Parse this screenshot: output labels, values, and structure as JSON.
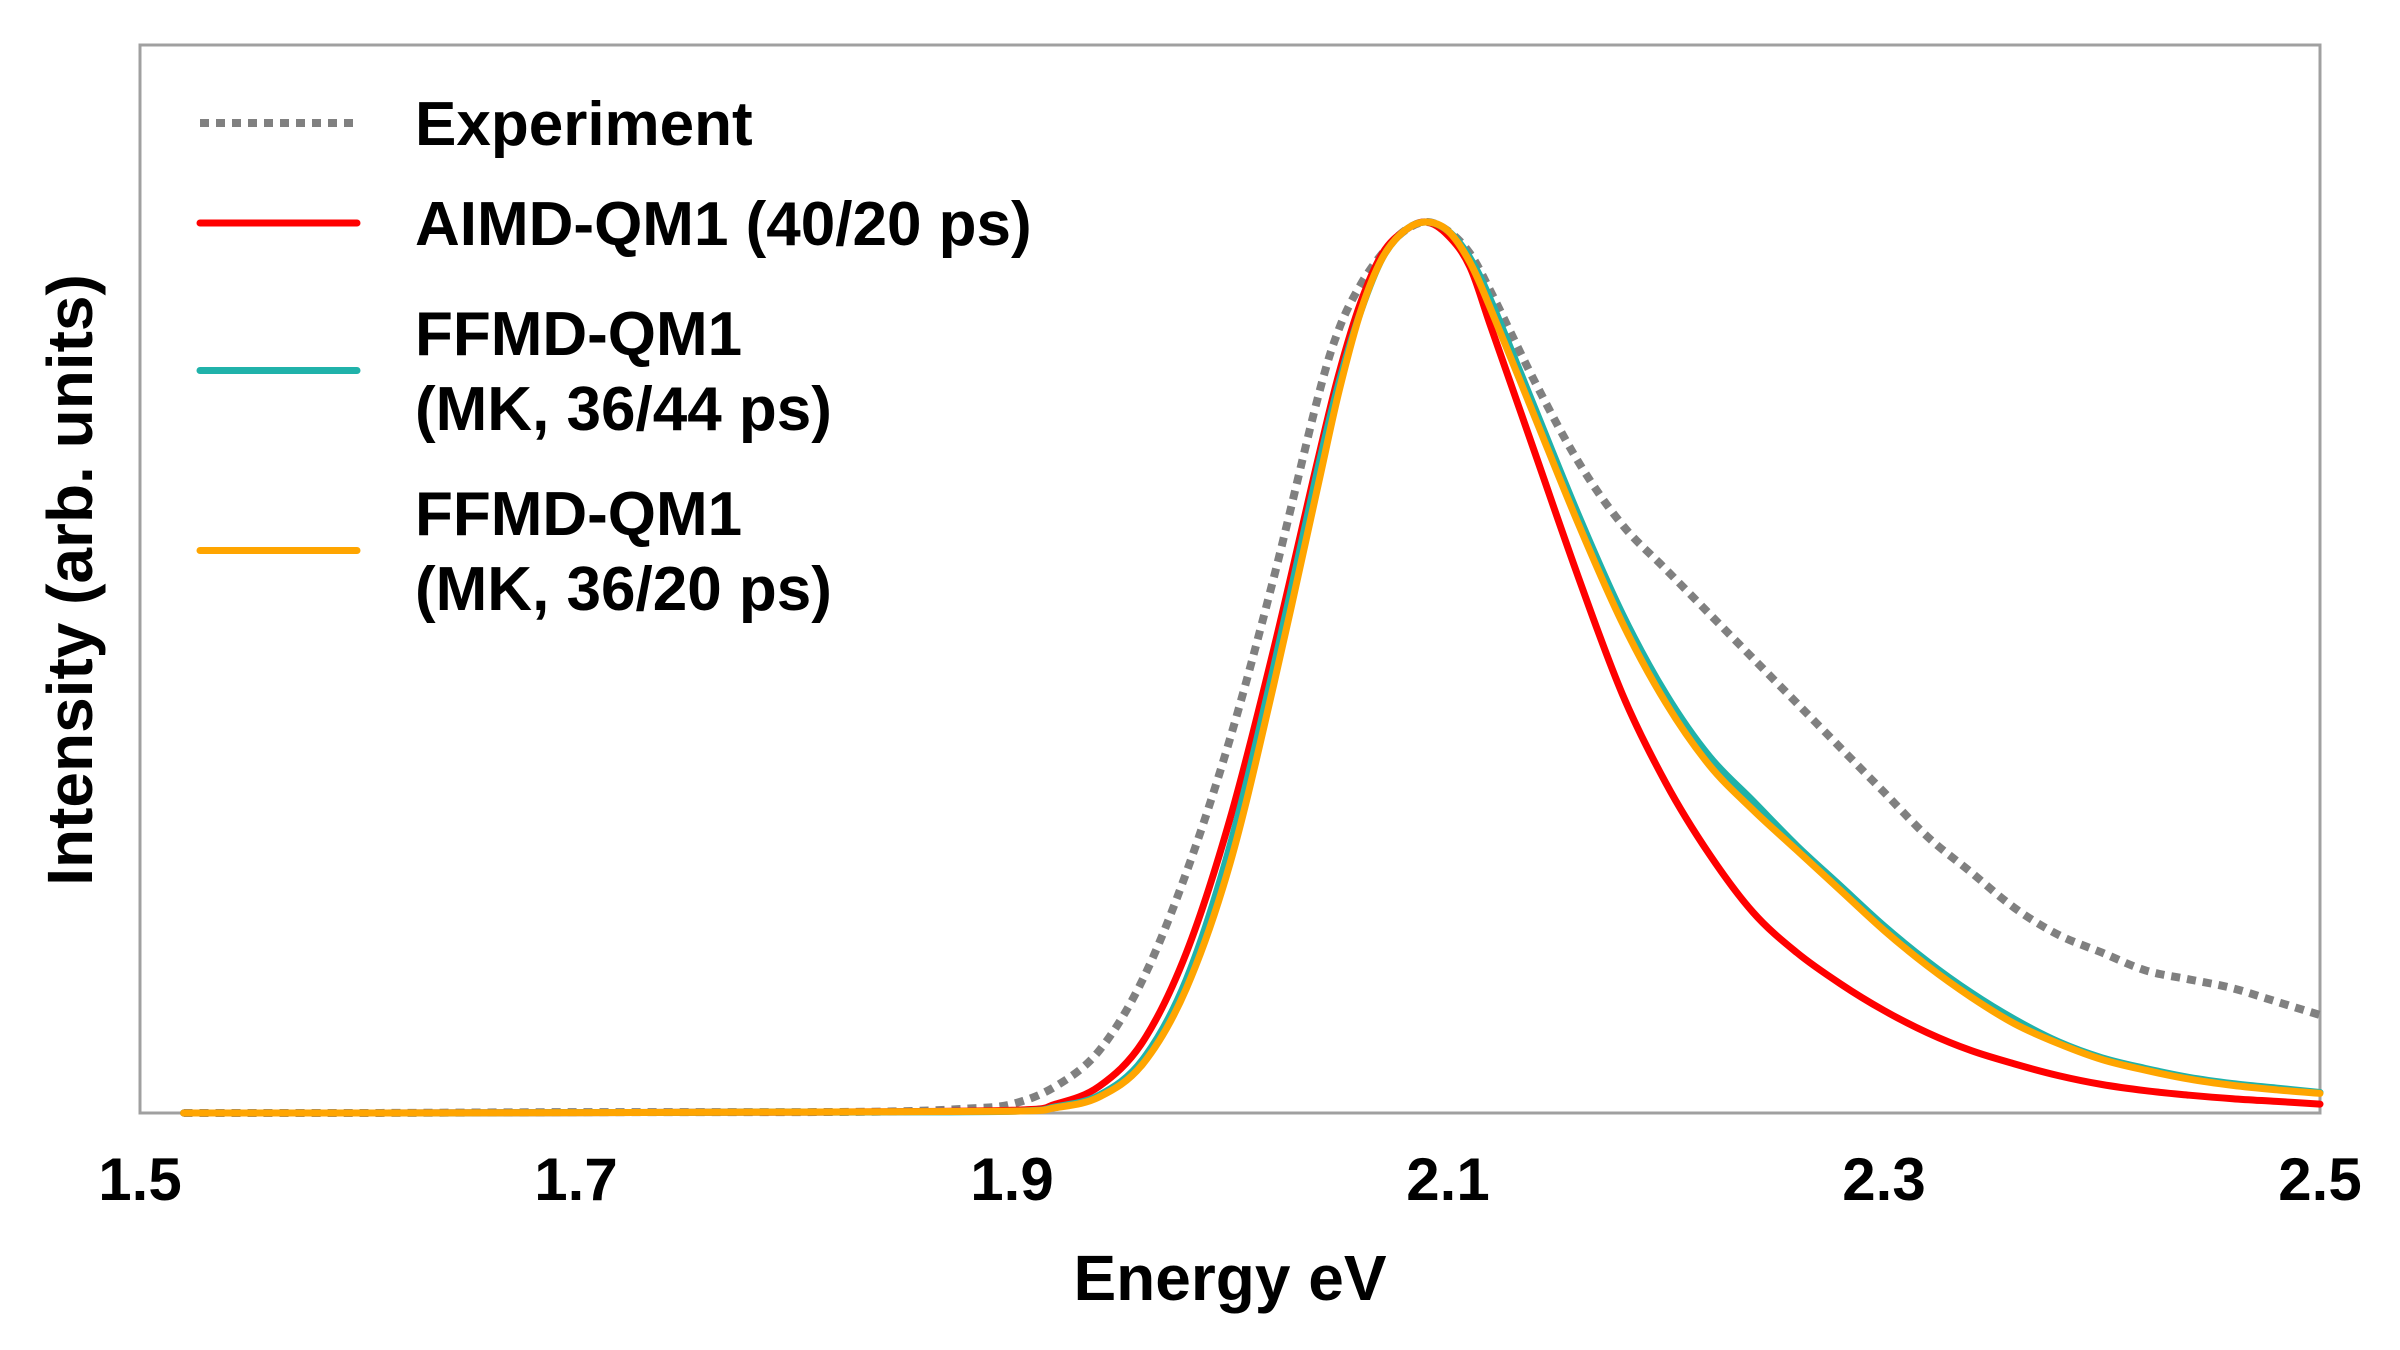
{
  "chart_data": {
    "type": "line",
    "title": "",
    "xlabel": "Energy eV",
    "ylabel": "Intensity (arb. units)",
    "xlim": [
      1.5,
      2.5
    ],
    "ylim": [
      0,
      1.0
    ],
    "xticks": [
      "1.5",
      "1.7",
      "1.9",
      "2.1",
      "2.3",
      "2.5"
    ],
    "grid": false,
    "legend_position": "top-left",
    "series": [
      {
        "name": "Experiment",
        "legend_lines": [
          "Experiment"
        ],
        "color": "#808080",
        "style": "dotted",
        "points": [
          [
            1.52,
            0.0
          ],
          [
            1.6,
            0.0
          ],
          [
            1.7,
            0.001
          ],
          [
            1.8,
            0.001
          ],
          [
            1.85,
            0.002
          ],
          [
            1.88,
            0.005
          ],
          [
            1.9,
            0.01
          ],
          [
            1.92,
            0.03
          ],
          [
            1.94,
            0.07
          ],
          [
            1.96,
            0.15
          ],
          [
            1.98,
            0.27
          ],
          [
            2.0,
            0.42
          ],
          [
            2.02,
            0.6
          ],
          [
            2.04,
            0.8
          ],
          [
            2.05,
            0.88
          ],
          [
            2.06,
            0.93
          ],
          [
            2.07,
            0.965
          ],
          [
            2.08,
            0.99
          ],
          [
            2.09,
            1.0
          ],
          [
            2.1,
            0.99
          ],
          [
            2.11,
            0.965
          ],
          [
            2.12,
            0.92
          ],
          [
            2.14,
            0.82
          ],
          [
            2.16,
            0.73
          ],
          [
            2.18,
            0.66
          ],
          [
            2.2,
            0.61
          ],
          [
            2.22,
            0.56
          ],
          [
            2.24,
            0.51
          ],
          [
            2.26,
            0.46
          ],
          [
            2.28,
            0.41
          ],
          [
            2.3,
            0.36
          ],
          [
            2.32,
            0.31
          ],
          [
            2.34,
            0.27
          ],
          [
            2.36,
            0.23
          ],
          [
            2.38,
            0.2
          ],
          [
            2.4,
            0.18
          ],
          [
            2.42,
            0.16
          ],
          [
            2.44,
            0.15
          ],
          [
            2.46,
            0.14
          ],
          [
            2.48,
            0.125
          ],
          [
            2.5,
            0.11
          ]
        ]
      },
      {
        "name": "AIMD-QM1 (40/20 ps)",
        "legend_lines": [
          "AIMD-QM1 (40/20 ps)"
        ],
        "color": "#ff0000",
        "style": "solid",
        "points": [
          [
            1.52,
            0.0
          ],
          [
            1.6,
            0.0
          ],
          [
            1.8,
            0.001
          ],
          [
            1.9,
            0.003
          ],
          [
            1.92,
            0.01
          ],
          [
            1.94,
            0.03
          ],
          [
            1.96,
            0.08
          ],
          [
            1.98,
            0.18
          ],
          [
            2.0,
            0.33
          ],
          [
            2.02,
            0.52
          ],
          [
            2.04,
            0.73
          ],
          [
            2.05,
            0.83
          ],
          [
            2.06,
            0.91
          ],
          [
            2.07,
            0.965
          ],
          [
            2.08,
            0.99
          ],
          [
            2.09,
            1.0
          ],
          [
            2.1,
            0.985
          ],
          [
            2.11,
            0.95
          ],
          [
            2.12,
            0.88
          ],
          [
            2.14,
            0.74
          ],
          [
            2.16,
            0.6
          ],
          [
            2.18,
            0.47
          ],
          [
            2.2,
            0.37
          ],
          [
            2.22,
            0.29
          ],
          [
            2.24,
            0.225
          ],
          [
            2.26,
            0.18
          ],
          [
            2.28,
            0.145
          ],
          [
            2.3,
            0.115
          ],
          [
            2.32,
            0.09
          ],
          [
            2.34,
            0.07
          ],
          [
            2.36,
            0.055
          ],
          [
            2.38,
            0.042
          ],
          [
            2.4,
            0.032
          ],
          [
            2.42,
            0.025
          ],
          [
            2.44,
            0.02
          ],
          [
            2.46,
            0.016
          ],
          [
            2.48,
            0.013
          ],
          [
            2.5,
            0.01
          ]
        ]
      },
      {
        "name": "FFMD-QM1 (MK, 36/44 ps)",
        "legend_lines": [
          "FFMD-QM1",
          "(MK, 36/44 ps)"
        ],
        "color": "#20b2aa",
        "style": "solid",
        "points": [
          [
            1.52,
            0.0
          ],
          [
            1.6,
            0.0
          ],
          [
            1.8,
            0.001
          ],
          [
            1.9,
            0.002
          ],
          [
            1.92,
            0.007
          ],
          [
            1.94,
            0.02
          ],
          [
            1.96,
            0.06
          ],
          [
            1.98,
            0.15
          ],
          [
            2.0,
            0.3
          ],
          [
            2.02,
            0.5
          ],
          [
            2.04,
            0.72
          ],
          [
            2.05,
            0.82
          ],
          [
            2.06,
            0.9
          ],
          [
            2.07,
            0.96
          ],
          [
            2.08,
            0.99
          ],
          [
            2.09,
            1.0
          ],
          [
            2.1,
            0.99
          ],
          [
            2.11,
            0.96
          ],
          [
            2.12,
            0.91
          ],
          [
            2.14,
            0.79
          ],
          [
            2.16,
            0.67
          ],
          [
            2.18,
            0.56
          ],
          [
            2.2,
            0.47
          ],
          [
            2.22,
            0.4
          ],
          [
            2.24,
            0.35
          ],
          [
            2.26,
            0.3
          ],
          [
            2.28,
            0.255
          ],
          [
            2.3,
            0.21
          ],
          [
            2.32,
            0.17
          ],
          [
            2.34,
            0.135
          ],
          [
            2.36,
            0.105
          ],
          [
            2.38,
            0.08
          ],
          [
            2.4,
            0.062
          ],
          [
            2.42,
            0.05
          ],
          [
            2.44,
            0.04
          ],
          [
            2.46,
            0.033
          ],
          [
            2.48,
            0.028
          ],
          [
            2.5,
            0.023
          ]
        ]
      },
      {
        "name": "FFMD-QM1 (MK, 36/20 ps)",
        "legend_lines": [
          "FFMD-QM1",
          "(MK, 36/20 ps)"
        ],
        "color": "#ffa500",
        "style": "solid",
        "points": [
          [
            1.52,
            0.0
          ],
          [
            1.6,
            0.0
          ],
          [
            1.8,
            0.001
          ],
          [
            1.9,
            0.002
          ],
          [
            1.92,
            0.006
          ],
          [
            1.94,
            0.018
          ],
          [
            1.96,
            0.055
          ],
          [
            1.98,
            0.14
          ],
          [
            2.0,
            0.28
          ],
          [
            2.02,
            0.48
          ],
          [
            2.04,
            0.7
          ],
          [
            2.05,
            0.81
          ],
          [
            2.06,
            0.9
          ],
          [
            2.07,
            0.96
          ],
          [
            2.08,
            0.99
          ],
          [
            2.09,
            1.0
          ],
          [
            2.1,
            0.99
          ],
          [
            2.11,
            0.955
          ],
          [
            2.12,
            0.9
          ],
          [
            2.14,
            0.78
          ],
          [
            2.16,
            0.66
          ],
          [
            2.18,
            0.55
          ],
          [
            2.2,
            0.46
          ],
          [
            2.22,
            0.39
          ],
          [
            2.24,
            0.34
          ],
          [
            2.26,
            0.295
          ],
          [
            2.28,
            0.25
          ],
          [
            2.3,
            0.205
          ],
          [
            2.32,
            0.165
          ],
          [
            2.34,
            0.13
          ],
          [
            2.36,
            0.1
          ],
          [
            2.38,
            0.078
          ],
          [
            2.4,
            0.06
          ],
          [
            2.42,
            0.048
          ],
          [
            2.44,
            0.038
          ],
          [
            2.46,
            0.031
          ],
          [
            2.48,
            0.026
          ],
          [
            2.5,
            0.022
          ]
        ]
      }
    ]
  }
}
